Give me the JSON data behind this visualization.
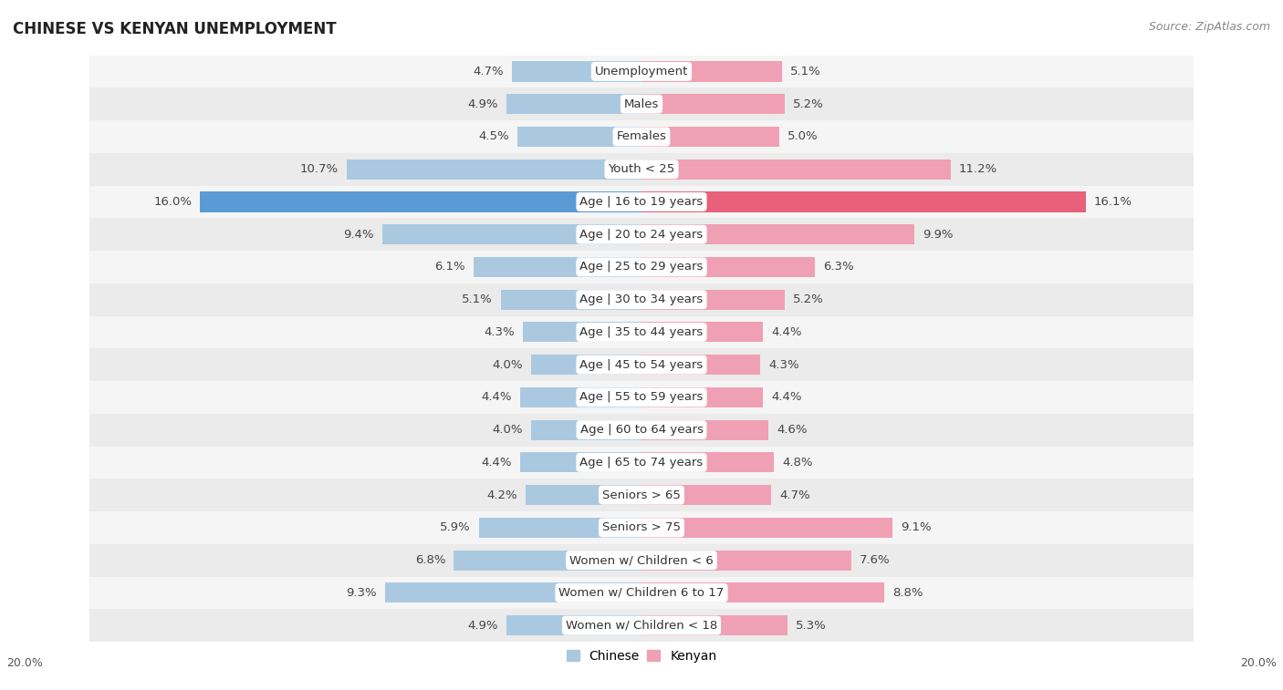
{
  "title": "CHINESE VS KENYAN UNEMPLOYMENT",
  "source": "Source: ZipAtlas.com",
  "categories": [
    "Unemployment",
    "Males",
    "Females",
    "Youth < 25",
    "Age | 16 to 19 years",
    "Age | 20 to 24 years",
    "Age | 25 to 29 years",
    "Age | 30 to 34 years",
    "Age | 35 to 44 years",
    "Age | 45 to 54 years",
    "Age | 55 to 59 years",
    "Age | 60 to 64 years",
    "Age | 65 to 74 years",
    "Seniors > 65",
    "Seniors > 75",
    "Women w/ Children < 6",
    "Women w/ Children 6 to 17",
    "Women w/ Children < 18"
  ],
  "chinese": [
    4.7,
    4.9,
    4.5,
    10.7,
    16.0,
    9.4,
    6.1,
    5.1,
    4.3,
    4.0,
    4.4,
    4.0,
    4.4,
    4.2,
    5.9,
    6.8,
    9.3,
    4.9
  ],
  "kenyan": [
    5.1,
    5.2,
    5.0,
    11.2,
    16.1,
    9.9,
    6.3,
    5.2,
    4.4,
    4.3,
    4.4,
    4.6,
    4.8,
    4.7,
    9.1,
    7.6,
    8.8,
    5.3
  ],
  "chinese_color": "#aac9e0",
  "kenyan_color": "#f0a0b4",
  "chinese_color_highlight": "#5b9bd5",
  "kenyan_color_highlight": "#e8607a",
  "bg_colors": [
    "#f5f5f5",
    "#ebebeb"
  ],
  "axis_limit": 20.0,
  "bar_height": 0.62,
  "label_fontsize": 9.5,
  "title_fontsize": 12,
  "source_fontsize": 9,
  "value_fontsize": 9.5,
  "cat_fontsize": 9.5
}
